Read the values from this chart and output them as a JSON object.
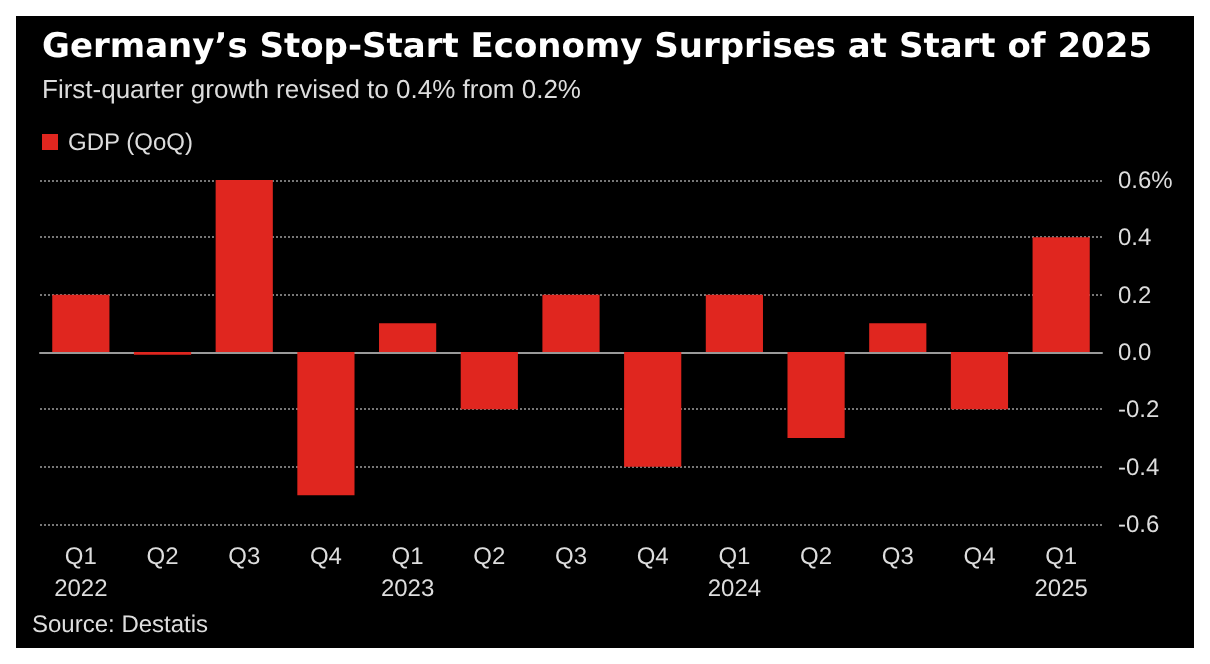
{
  "chart_data": {
    "type": "bar",
    "title": "Germany’s Stop-Start Economy Surprises at Start of 2025",
    "subtitle": "First-quarter growth revised to 0.4% from 0.2%",
    "categories": [
      "Q1\n2022",
      "Q2",
      "Q3",
      "Q4",
      "Q1\n2023",
      "Q2",
      "Q3",
      "Q4",
      "Q1\n2024",
      "Q2",
      "Q3",
      "Q4",
      "Q1\n2025"
    ],
    "series": [
      {
        "name": "GDP (QoQ)",
        "color": "#e0261f",
        "values": [
          0.2,
          -0.01,
          0.6,
          -0.5,
          0.1,
          -0.2,
          0.2,
          -0.4,
          0.2,
          -0.3,
          0.1,
          -0.2,
          0.4
        ]
      }
    ],
    "ylim": [
      -0.6,
      0.6
    ],
    "yticks": [
      -0.6,
      -0.4,
      -0.2,
      {
        "value": 0,
        "label": "0.0"
      },
      0.2,
      0.4,
      {
        "value": 0.6,
        "label": "0.6%"
      }
    ],
    "grid": "y",
    "legend": "top left",
    "annotations": [
      "Source: Destatis"
    ]
  }
}
